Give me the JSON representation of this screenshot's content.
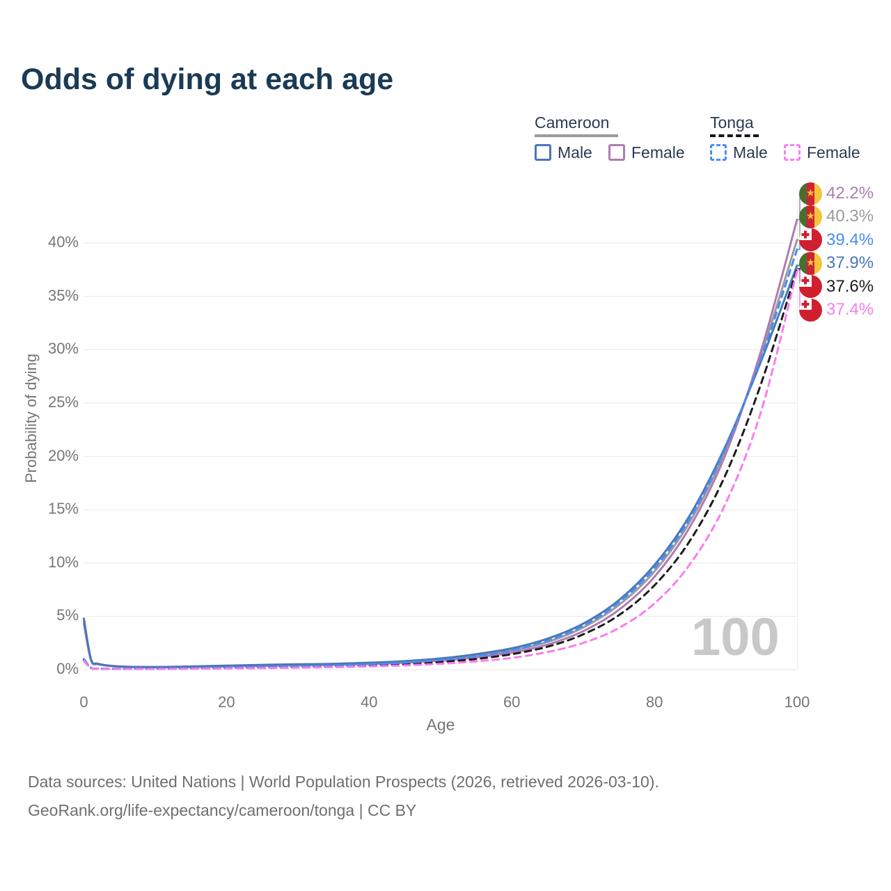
{
  "title": "Odds of dying at each age",
  "legend": {
    "cameroon_title": "Cameroon",
    "tonga_title": "Tonga",
    "male_label": "Male",
    "female_label": "Female",
    "cameroon_line_color": "#9b9b9b",
    "tonga_line_color": "#161616",
    "cameroon_male_color": "#4a77b8",
    "cameroon_female_color": "#af7bb0",
    "tonga_male_color": "#4a8df0",
    "tonga_female_color": "#fa7cf0"
  },
  "watermark": "100",
  "footer": {
    "line1": "Data sources: United Nations | World Population Prospects (2026, retrieved 2026-03-10).",
    "line2": "GeoRank.org/life-expectancy/cameroon/tonga | CC BY"
  },
  "chart_data": {
    "type": "line",
    "title": "Odds of dying at each age",
    "xlabel": "Age",
    "ylabel": "Probability of dying",
    "xlim": [
      0,
      100
    ],
    "ylim": [
      0,
      44
    ],
    "x_ticks": [
      0,
      20,
      40,
      60,
      80,
      100
    ],
    "y_ticks": [
      0,
      5,
      10,
      15,
      20,
      25,
      30,
      35,
      40
    ],
    "y_tick_suffix": "%",
    "grid": "horizontal",
    "legend_position": "top-right",
    "x": [
      0,
      1,
      2,
      5,
      10,
      15,
      20,
      25,
      30,
      35,
      40,
      45,
      50,
      55,
      60,
      65,
      70,
      75,
      80,
      85,
      90,
      95,
      100
    ],
    "series": [
      {
        "name": "Cameroon Female",
        "country": "cameroon",
        "sex": "female",
        "dash": "solid",
        "color": "#af7bb0",
        "end_label": "42.2%",
        "end_value": 42.2,
        "values": [
          4.3,
          0.9,
          0.5,
          0.28,
          0.22,
          0.25,
          0.3,
          0.35,
          0.4,
          0.45,
          0.52,
          0.65,
          0.85,
          1.15,
          1.6,
          2.35,
          3.6,
          5.6,
          8.7,
          13.4,
          20.2,
          30.0,
          42.2
        ]
      },
      {
        "name": "Cameroon Both sexes",
        "country": "cameroon",
        "sex": "both",
        "dash": "solid",
        "color": "#9b9b9b",
        "end_label": "40.3%",
        "end_value": 40.3,
        "values": [
          4.55,
          0.95,
          0.52,
          0.29,
          0.24,
          0.28,
          0.34,
          0.4,
          0.45,
          0.5,
          0.58,
          0.72,
          0.95,
          1.3,
          1.8,
          2.6,
          3.95,
          6.05,
          9.2,
          13.9,
          20.6,
          29.6,
          40.3
        ]
      },
      {
        "name": "Tonga Male",
        "country": "tonga",
        "sex": "male",
        "dash": "dashed",
        "color": "#4a8df0",
        "end_label": "39.4%",
        "end_value": 39.4,
        "values": [
          1.0,
          0.18,
          0.1,
          0.07,
          0.08,
          0.12,
          0.18,
          0.24,
          0.3,
          0.38,
          0.5,
          0.65,
          0.9,
          1.25,
          1.8,
          2.7,
          4.1,
          6.3,
          9.5,
          14.2,
          20.8,
          29.3,
          39.4
        ]
      },
      {
        "name": "Cameroon Male",
        "country": "cameroon",
        "sex": "male",
        "dash": "solid",
        "color": "#4a77b8",
        "end_label": "37.9%",
        "end_value": 37.9,
        "values": [
          4.8,
          1.0,
          0.55,
          0.3,
          0.25,
          0.3,
          0.38,
          0.45,
          0.5,
          0.55,
          0.65,
          0.8,
          1.05,
          1.45,
          2.0,
          2.9,
          4.3,
          6.5,
          9.8,
          14.5,
          21.0,
          29.0,
          37.9
        ]
      },
      {
        "name": "Tonga Both sexes",
        "country": "tonga",
        "sex": "both",
        "dash": "dashed",
        "color": "#1c1c1c",
        "end_label": "37.6%",
        "end_value": 37.6,
        "values": [
          0.9,
          0.16,
          0.09,
          0.07,
          0.07,
          0.1,
          0.14,
          0.19,
          0.24,
          0.3,
          0.4,
          0.52,
          0.72,
          1.0,
          1.45,
          2.15,
          3.3,
          5.1,
          7.9,
          12.1,
          18.3,
          26.9,
          37.6
        ]
      },
      {
        "name": "Tonga Female",
        "country": "tonga",
        "sex": "female",
        "dash": "dashed",
        "color": "#fa7cf0",
        "end_label": "37.4%",
        "end_value": 37.4,
        "values": [
          0.8,
          0.14,
          0.08,
          0.06,
          0.06,
          0.08,
          0.11,
          0.14,
          0.18,
          0.23,
          0.3,
          0.4,
          0.55,
          0.78,
          1.1,
          1.65,
          2.5,
          3.9,
          6.2,
          9.9,
          15.6,
          24.3,
          37.4
        ]
      }
    ]
  }
}
